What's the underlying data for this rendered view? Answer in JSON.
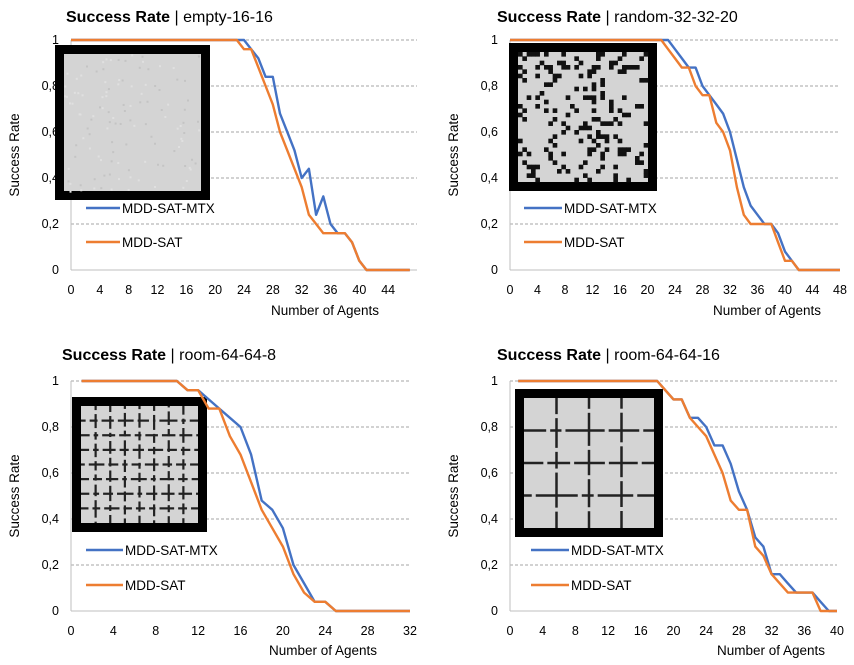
{
  "colors": {
    "mtx": "#4472C4",
    "sat": "#ED7D31",
    "grid": "#A6A6A6",
    "axis": "#BFBFBF"
  },
  "chart_data": [
    {
      "type": "line",
      "title": "Success Rate",
      "subtitle": "empty-16-16",
      "xlabel": "Number of Agents",
      "ylabel": "Success Rate",
      "xlim": [
        0,
        48
      ],
      "ylim": [
        0,
        1
      ],
      "x_ticks": [
        "0",
        "4",
        "8",
        "12",
        "16",
        "20",
        "24",
        "28",
        "32",
        "36",
        "40",
        "44"
      ],
      "y_ticks": [
        "0",
        "0,2",
        "0,4",
        "0,6",
        "0,8",
        "1"
      ],
      "inset": "empty",
      "series": [
        {
          "name": "MDD-SAT-MTX",
          "x": [
            0,
            22,
            24,
            25,
            26,
            27,
            28,
            29,
            30,
            31,
            32,
            33,
            34,
            35,
            36,
            37,
            38,
            39,
            40,
            41,
            42,
            43,
            44,
            45,
            46,
            47
          ],
          "y": [
            1,
            1,
            1,
            0.96,
            0.92,
            0.84,
            0.84,
            0.68,
            0.6,
            0.52,
            0.4,
            0.44,
            0.24,
            0.32,
            0.2,
            0.16,
            0.16,
            0.12,
            0.04,
            0,
            0,
            0,
            0,
            0,
            0,
            0
          ]
        },
        {
          "name": "MDD-SAT",
          "x": [
            0,
            22,
            23,
            24,
            25,
            26,
            27,
            28,
            29,
            30,
            31,
            32,
            33,
            34,
            35,
            36,
            37,
            38,
            39,
            40,
            41,
            42,
            43,
            44,
            45,
            46,
            47
          ],
          "y": [
            1,
            1,
            1,
            0.96,
            0.96,
            0.88,
            0.8,
            0.72,
            0.6,
            0.52,
            0.44,
            0.36,
            0.24,
            0.2,
            0.16,
            0.16,
            0.16,
            0.16,
            0.12,
            0.04,
            0,
            0,
            0,
            0,
            0,
            0,
            0
          ]
        }
      ]
    },
    {
      "type": "line",
      "title": "Success Rate",
      "subtitle": "random-32-32-20",
      "xlabel": "Number of Agents",
      "ylabel": "Success Rate",
      "xlim": [
        0,
        48
      ],
      "ylim": [
        0,
        1
      ],
      "x_ticks": [
        "0",
        "4",
        "8",
        "12",
        "16",
        "20",
        "24",
        "28",
        "32",
        "36",
        "40",
        "44",
        "48"
      ],
      "y_ticks": [
        "0",
        "0,2",
        "0,4",
        "0,6",
        "0,8",
        "1"
      ],
      "inset": "random",
      "series": [
        {
          "name": "MDD-SAT-MTX",
          "x": [
            0,
            21,
            22,
            23,
            24,
            25,
            26,
            27,
            28,
            29,
            30,
            31,
            32,
            33,
            34,
            35,
            36,
            37,
            38,
            39,
            40,
            41,
            42,
            43,
            44,
            45,
            46,
            47,
            48
          ],
          "y": [
            1,
            1,
            1,
            1,
            0.96,
            0.92,
            0.88,
            0.88,
            0.8,
            0.76,
            0.72,
            0.68,
            0.6,
            0.48,
            0.36,
            0.28,
            0.24,
            0.2,
            0.2,
            0.16,
            0.08,
            0.04,
            0,
            0,
            0,
            0,
            0,
            0,
            0
          ]
        },
        {
          "name": "MDD-SAT",
          "x": [
            0,
            21,
            22,
            23,
            24,
            25,
            26,
            27,
            28,
            29,
            30,
            31,
            32,
            33,
            34,
            35,
            36,
            37,
            38,
            39,
            40,
            41,
            42,
            43,
            44,
            45,
            46,
            47,
            48
          ],
          "y": [
            1,
            1,
            1,
            0.96,
            0.92,
            0.88,
            0.88,
            0.8,
            0.76,
            0.76,
            0.64,
            0.6,
            0.52,
            0.36,
            0.24,
            0.2,
            0.2,
            0.2,
            0.2,
            0.12,
            0.04,
            0.04,
            0,
            0,
            0,
            0,
            0,
            0,
            0
          ]
        }
      ]
    },
    {
      "type": "line",
      "title": "Success Rate",
      "subtitle": "room-64-64-8",
      "xlabel": "Number of Agents",
      "ylabel": "Success Rate",
      "xlim": [
        0,
        32
      ],
      "ylim": [
        0,
        1
      ],
      "x_ticks": [
        "0",
        "4",
        "8",
        "12",
        "16",
        "20",
        "24",
        "28",
        "32"
      ],
      "y_ticks": [
        "0",
        "0,2",
        "0,4",
        "0,6",
        "0,8",
        "1"
      ],
      "inset": "room8",
      "series": [
        {
          "name": "MDD-SAT-MTX",
          "x": [
            1,
            10,
            11,
            12,
            13,
            14,
            15,
            16,
            17,
            18,
            19,
            20,
            21,
            22,
            23,
            24,
            25,
            26,
            27,
            28,
            29,
            30,
            31,
            32
          ],
          "y": [
            1,
            1,
            0.96,
            0.96,
            0.92,
            0.88,
            0.84,
            0.8,
            0.68,
            0.48,
            0.44,
            0.36,
            0.2,
            0.12,
            0.04,
            0.04,
            0,
            0,
            0,
            0,
            0,
            0,
            0,
            0
          ]
        },
        {
          "name": "MDD-SAT",
          "x": [
            1,
            10,
            11,
            12,
            13,
            14,
            15,
            16,
            17,
            18,
            19,
            20,
            21,
            22,
            23,
            24,
            25,
            26,
            27,
            28,
            29,
            30,
            31,
            32
          ],
          "y": [
            1,
            1,
            0.96,
            0.96,
            0.88,
            0.88,
            0.76,
            0.68,
            0.56,
            0.44,
            0.36,
            0.28,
            0.16,
            0.08,
            0.04,
            0.04,
            0,
            0,
            0,
            0,
            0,
            0,
            0,
            0
          ]
        }
      ]
    },
    {
      "type": "line",
      "title": "Success Rate",
      "subtitle": "room-64-64-16",
      "xlabel": "Number of Agents",
      "ylabel": "Success Rate",
      "xlim": [
        0,
        40
      ],
      "ylim": [
        0,
        1
      ],
      "x_ticks": [
        "0",
        "4",
        "8",
        "12",
        "16",
        "20",
        "24",
        "28",
        "32",
        "36",
        "40"
      ],
      "y_ticks": [
        "0",
        "0,2",
        "0,4",
        "0,6",
        "0,8",
        "1"
      ],
      "inset": "room16",
      "series": [
        {
          "name": "MDD-SAT-MTX",
          "x": [
            1,
            18,
            19,
            20,
            21,
            22,
            23,
            24,
            25,
            26,
            27,
            28,
            29,
            30,
            31,
            32,
            33,
            34,
            35,
            36,
            37,
            38,
            39,
            40
          ],
          "y": [
            1,
            1,
            0.96,
            0.92,
            0.92,
            0.84,
            0.84,
            0.8,
            0.72,
            0.72,
            0.64,
            0.52,
            0.44,
            0.32,
            0.28,
            0.16,
            0.16,
            0.12,
            0.08,
            0.08,
            0.08,
            0.04,
            0,
            0
          ]
        },
        {
          "name": "MDD-SAT",
          "x": [
            1,
            18,
            19,
            20,
            21,
            22,
            23,
            24,
            25,
            26,
            27,
            28,
            29,
            30,
            31,
            32,
            33,
            34,
            35,
            36,
            37,
            38,
            39,
            40
          ],
          "y": [
            1,
            1,
            0.96,
            0.92,
            0.92,
            0.84,
            0.8,
            0.76,
            0.68,
            0.6,
            0.48,
            0.44,
            0.44,
            0.28,
            0.24,
            0.16,
            0.12,
            0.08,
            0.08,
            0.08,
            0.08,
            0,
            0,
            0
          ]
        }
      ]
    }
  ]
}
